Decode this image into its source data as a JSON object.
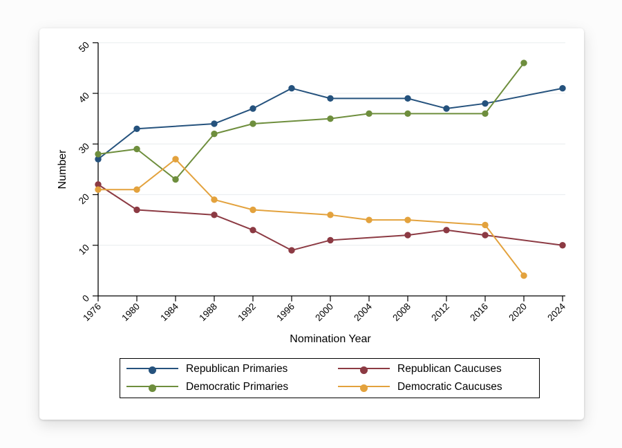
{
  "page": {
    "background": "#fcfcfc",
    "card_background": "#ffffff"
  },
  "colors": {
    "axis": "#000000",
    "grid": "#eceff1",
    "tick_text": "#000000",
    "legend_border": "#000000"
  },
  "chart_data": {
    "type": "line",
    "title": "",
    "xlabel": "Nomination Year",
    "ylabel": "Number",
    "x": [
      1976,
      1980,
      1984,
      1988,
      1992,
      1996,
      2000,
      2004,
      2008,
      2012,
      2016,
      2020,
      2024
    ],
    "x_tick_labels": [
      "1976",
      "1980",
      "1984",
      "1988",
      "1992",
      "1996",
      "2000",
      "2004",
      "2008",
      "2012",
      "2016",
      "2020",
      "2024"
    ],
    "y_ticks": [
      0,
      10,
      20,
      30,
      40,
      50
    ],
    "y_tick_labels": [
      "0",
      "10",
      "20",
      "30",
      "40",
      "50"
    ],
    "xlim": [
      1976,
      2024
    ],
    "ylim": [
      0,
      50
    ],
    "grid": "horizontal-light",
    "legend_position": "bottom-box-two-columns",
    "series": [
      {
        "name": "Republican Primaries",
        "color": "#25527d",
        "values": [
          27,
          33,
          null,
          34,
          37,
          41,
          39,
          null,
          39,
          37,
          38,
          null,
          41
        ]
      },
      {
        "name": "Democratic Primaries",
        "color": "#6e8e3d",
        "values": [
          28,
          29,
          23,
          32,
          34,
          null,
          35,
          36,
          36,
          null,
          36,
          46,
          null
        ]
      },
      {
        "name": "Republican Caucuses",
        "color": "#8c3a43",
        "values": [
          22,
          17,
          null,
          16,
          13,
          9,
          11,
          null,
          12,
          13,
          12,
          null,
          10
        ]
      },
      {
        "name": "Democratic Caucuses",
        "color": "#e3a23d",
        "values": [
          21,
          21,
          27,
          19,
          17,
          null,
          16,
          15,
          15,
          null,
          14,
          4,
          null
        ]
      }
    ]
  }
}
